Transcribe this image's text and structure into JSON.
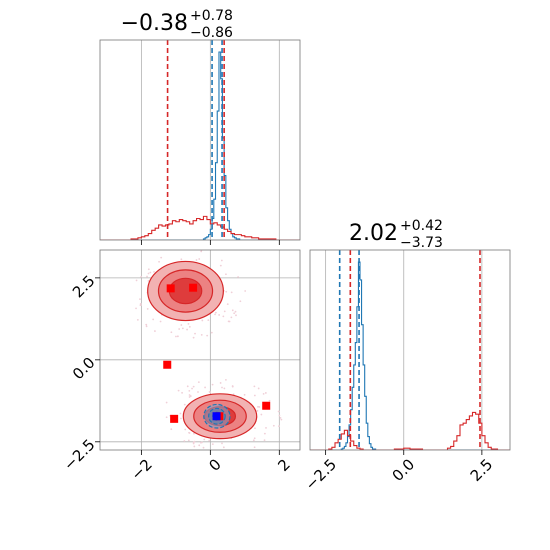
{
  "chart_data": [
    {
      "type": "histogram",
      "panel": "marginal-param-1",
      "title": {
        "value": "−0.38",
        "plus": "+0.78",
        "minus": "−0.86"
      },
      "xlim": [
        -3.2,
        2.6
      ],
      "x_ticks": [
        -2,
        0,
        2
      ],
      "grid": true,
      "series": [
        {
          "color": "#1f77b4",
          "bin_edges_start": -3.2,
          "bin_width": 0.05,
          "counts": [
            0,
            0,
            0,
            0,
            0,
            0,
            0,
            0,
            0,
            0,
            0,
            0,
            0,
            0,
            0,
            0,
            0,
            0,
            0,
            0,
            0,
            0,
            0,
            0,
            0,
            0,
            0,
            0,
            0,
            0,
            0,
            0,
            0,
            0,
            0,
            0,
            0,
            0,
            0,
            0,
            0,
            0,
            0,
            0,
            0,
            0,
            0,
            0,
            0,
            0,
            0,
            0,
            0,
            0,
            0,
            0,
            0,
            0,
            0,
            0,
            1,
            2,
            3,
            5,
            10,
            20,
            38,
            72,
            120,
            175,
            150,
            95,
            60,
            30,
            18,
            10,
            6,
            3,
            2,
            1,
            1,
            0,
            0,
            0,
            0,
            0,
            0,
            0,
            0,
            0,
            0,
            0,
            0,
            0,
            0,
            0,
            0,
            0,
            0,
            0,
            0,
            0,
            0,
            0,
            0,
            0,
            0,
            0,
            0,
            0,
            0,
            0,
            0,
            0,
            0,
            0
          ]
        },
        {
          "color": "#d62728",
          "bin_edges_start": -3.2,
          "bin_width": 0.1,
          "counts": [
            0,
            0,
            0,
            0,
            0,
            0,
            0,
            0,
            0,
            1,
            1,
            2,
            3,
            4,
            6,
            9,
            11,
            14,
            13,
            14,
            15,
            18,
            17,
            19,
            18,
            17,
            15,
            18,
            20,
            19,
            22,
            19,
            15,
            16,
            14,
            12,
            10,
            8,
            6,
            5,
            5,
            4,
            3,
            3,
            2,
            2,
            1,
            1,
            1,
            1,
            1,
            0,
            0,
            0,
            0,
            0,
            0,
            0
          ]
        }
      ],
      "lines": [
        {
          "x": -1.24,
          "color": "#d62728"
        },
        {
          "x": 0.4,
          "color": "#d62728"
        },
        {
          "x": 0.05,
          "color": "#1f77b4"
        },
        {
          "x": 0.34,
          "color": "#1f77b4"
        }
      ]
    },
    {
      "type": "histogram",
      "panel": "marginal-param-2",
      "title": {
        "value": "2.02",
        "plus": "+0.42",
        "minus": "−3.73"
      },
      "xlim": [
        -3.0,
        3.4
      ],
      "x_ticks": [
        -2.5,
        0.0,
        2.5
      ],
      "x_tick_labels": [
        "−2.5",
        "0.0",
        "2.5"
      ],
      "grid": true,
      "series": [
        {
          "color": "#1f77b4",
          "bin_edges_start": -3.0,
          "bin_width": 0.05,
          "counts": [
            0,
            0,
            0,
            0,
            0,
            0,
            0,
            0,
            0,
            0,
            0,
            0,
            0,
            0,
            0,
            0,
            0,
            0,
            0,
            0,
            1,
            2,
            4,
            8,
            15,
            28,
            45,
            70,
            95,
            120,
            160,
            210,
            190,
            140,
            95,
            60,
            30,
            15,
            7,
            3,
            1,
            1,
            0,
            0,
            0,
            0,
            0,
            0,
            0,
            0,
            0,
            0,
            0,
            0,
            0,
            0,
            0,
            0,
            0,
            0,
            0,
            0,
            0,
            0,
            0,
            0,
            0,
            0,
            0,
            0,
            0,
            0,
            0,
            0,
            0,
            0,
            0,
            0,
            0,
            0,
            0,
            0,
            0,
            0,
            0,
            0,
            0,
            0,
            0,
            0,
            0,
            0,
            0,
            0,
            0,
            0,
            0,
            0,
            0,
            0,
            0,
            0,
            0,
            0,
            0,
            0,
            0,
            0,
            0,
            0,
            0,
            0,
            0,
            0,
            0,
            0,
            0,
            0,
            0,
            0,
            0,
            0,
            0,
            0,
            0,
            0,
            0,
            0
          ]
        },
        {
          "color": "#d62728",
          "bin_edges_start": -3.0,
          "bin_width": 0.1,
          "counts": [
            0,
            0,
            0,
            0,
            0,
            0,
            1,
            3,
            8,
            12,
            18,
            22,
            16,
            10,
            5,
            2,
            1,
            0,
            0,
            0,
            0,
            0,
            0,
            0,
            0,
            0,
            0,
            1,
            1,
            1,
            2,
            2,
            1,
            1,
            1,
            1,
            0,
            0,
            0,
            0,
            0,
            0,
            0,
            0,
            2,
            4,
            10,
            16,
            28,
            30,
            34,
            38,
            42,
            40,
            30,
            16,
            8,
            3,
            1,
            1,
            0,
            0,
            0,
            0
          ]
        }
      ],
      "lines": [
        {
          "x": -1.71,
          "color": "#d62728"
        },
        {
          "x": 2.44,
          "color": "#d62728"
        },
        {
          "x": -2.05,
          "color": "#1f77b4"
        },
        {
          "x": -1.43,
          "color": "#1f77b4"
        }
      ]
    },
    {
      "type": "contour",
      "panel": "joint-param-1-param-2",
      "xlim": [
        -3.2,
        2.6
      ],
      "ylim": [
        -2.75,
        3.35
      ],
      "x_ticks": [
        -2,
        0,
        2
      ],
      "y_ticks": [
        -2.5,
        0.0,
        2.5
      ],
      "y_tick_labels": [
        "−2.5",
        "0.0",
        "2.5"
      ],
      "grid": true,
      "red_blobs": [
        {
          "cx": -0.72,
          "cy": 2.1,
          "rx": 1.12,
          "ry": 0.92,
          "levels": [
            0.98,
            0.7,
            0.42
          ],
          "fills": [
            "#f2b2b2",
            "#ec8282",
            "#de3c3c"
          ]
        },
        {
          "cx": 0.28,
          "cy": -1.72,
          "rx": 1.12,
          "ry": 0.72,
          "levels": [
            0.95,
            0.68,
            0.4
          ],
          "fills": [
            "#f2b2b2",
            "#ec8282",
            "#de3c3c"
          ]
        }
      ],
      "blue_contours": {
        "cx": 0.19,
        "cy": -1.72,
        "rx": [
          0.38,
          0.24,
          0.12
        ],
        "ry": [
          0.36,
          0.24,
          0.12
        ]
      },
      "points": [
        {
          "x": -1.15,
          "y": 2.18,
          "color": "#ff0000"
        },
        {
          "x": -0.5,
          "y": 2.2,
          "color": "#ff0000"
        },
        {
          "x": -1.25,
          "y": -0.15,
          "color": "#ff0000"
        },
        {
          "x": -1.05,
          "y": -1.8,
          "color": "#ff0000"
        },
        {
          "x": 1.62,
          "y": -1.4,
          "color": "#ff0000"
        },
        {
          "x": 0.26,
          "y": -1.72,
          "color": "#ff0000"
        },
        {
          "x": 0.18,
          "y": -1.72,
          "color": "#0000ff"
        }
      ],
      "lines_x": [
        -1.24,
        0.4
      ],
      "lines_y": [
        -1.71,
        2.44
      ]
    }
  ]
}
